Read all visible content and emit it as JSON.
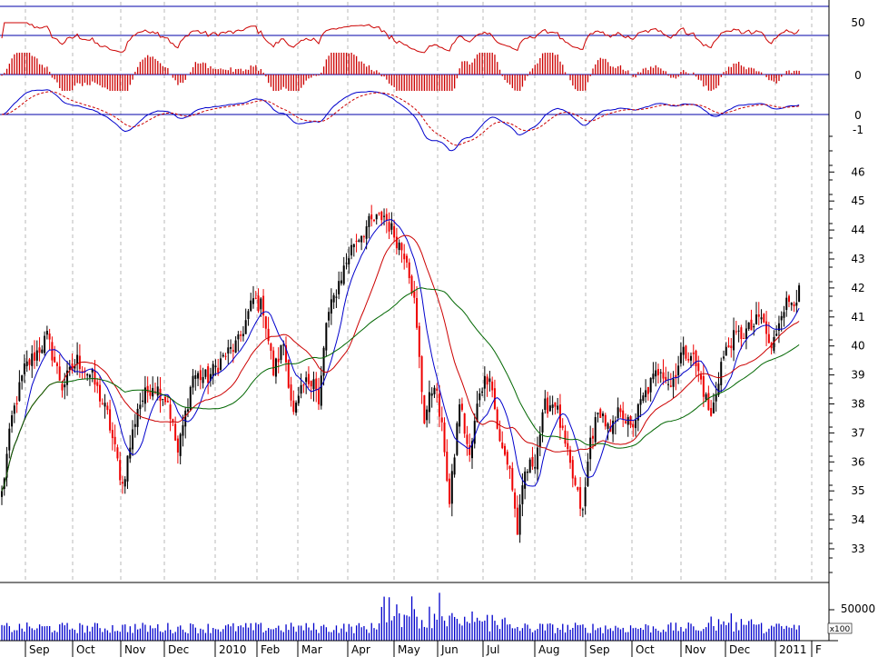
{
  "chart_data": {
    "type": "stock",
    "months": [
      "Sep",
      "Oct",
      "Nov",
      "Dec",
      "2010",
      "Feb",
      "Mar",
      "Apr",
      "May",
      "Jun",
      "Jul",
      "Aug",
      "Sep",
      "Oct",
      "Nov",
      "Dec",
      "2011",
      "F"
    ],
    "price": {
      "ylim": [
        32.3,
        46.5
      ],
      "ticks": [
        33,
        34,
        35,
        36,
        37,
        38,
        39,
        40,
        41,
        42,
        43,
        44,
        45,
        46
      ],
      "series_colors": {
        "ma_short": "#0000cc",
        "ma_mid": "#cc0000",
        "ma_long": "#006600",
        "up": "#000000",
        "down": "#ee0000"
      },
      "anchors": [
        [
          0,
          34.9
        ],
        [
          4,
          37.5
        ],
        [
          9,
          39.2
        ],
        [
          14,
          39.8
        ],
        [
          18,
          40.3
        ],
        [
          24,
          38.6
        ],
        [
          30,
          39.5
        ],
        [
          36,
          38.9
        ],
        [
          42,
          37.6
        ],
        [
          48,
          35.2
        ],
        [
          54,
          37.9
        ],
        [
          60,
          38.7
        ],
        [
          66,
          38.1
        ],
        [
          70,
          36.3
        ],
        [
          76,
          39.0
        ],
        [
          82,
          38.9
        ],
        [
          88,
          39.6
        ],
        [
          94,
          40.1
        ],
        [
          100,
          41.6
        ],
        [
          104,
          41.3
        ],
        [
          108,
          39.1
        ],
        [
          112,
          40.1
        ],
        [
          116,
          37.6
        ],
        [
          120,
          38.6
        ],
        [
          124,
          39.0
        ],
        [
          126,
          37.9
        ],
        [
          129,
          40.8
        ],
        [
          134,
          42.2
        ],
        [
          140,
          43.6
        ],
        [
          146,
          44.2
        ],
        [
          152,
          44.5
        ],
        [
          158,
          43.5
        ],
        [
          161,
          43.1
        ],
        [
          164,
          41.5
        ],
        [
          168,
          37.5
        ],
        [
          172,
          38.8
        ],
        [
          176,
          36.5
        ],
        [
          178,
          34.5
        ],
        [
          182,
          38.1
        ],
        [
          186,
          36.1
        ],
        [
          190,
          38.5
        ],
        [
          194,
          39.1
        ],
        [
          198,
          36.6
        ],
        [
          202,
          35.8
        ],
        [
          205,
          33.6
        ],
        [
          208,
          35.6
        ],
        [
          212,
          36.1
        ],
        [
          216,
          37.9
        ],
        [
          220,
          38.1
        ],
        [
          224,
          36.5
        ],
        [
          228,
          35.1
        ],
        [
          231,
          34.2
        ],
        [
          234,
          36.8
        ],
        [
          238,
          37.8
        ],
        [
          242,
          36.9
        ],
        [
          246,
          37.9
        ],
        [
          250,
          37.1
        ],
        [
          254,
          38.0
        ],
        [
          258,
          38.7
        ],
        [
          262,
          39.3
        ],
        [
          266,
          38.6
        ],
        [
          270,
          39.7
        ],
        [
          274,
          39.8
        ],
        [
          278,
          38.8
        ],
        [
          282,
          37.5
        ],
        [
          286,
          39.4
        ],
        [
          290,
          40.2
        ],
        [
          294,
          40.4
        ],
        [
          298,
          40.6
        ],
        [
          302,
          41.0
        ],
        [
          306,
          39.8
        ],
        [
          310,
          41.3
        ],
        [
          314,
          41.6
        ],
        [
          317,
          41.8
        ]
      ]
    },
    "rsi": {
      "ticks": [
        50
      ],
      "levels": [
        30,
        70
      ]
    },
    "histogram": {
      "ticks": [
        0
      ]
    },
    "macd": {
      "ticks": [
        0,
        -1
      ]
    },
    "volume": {
      "ticks": [
        50000
      ],
      "unit": "x100"
    }
  }
}
